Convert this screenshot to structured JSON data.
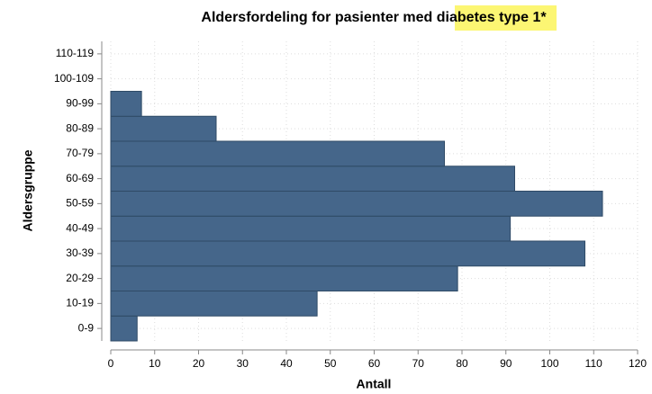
{
  "chart_data": {
    "type": "bar",
    "orientation": "horizontal",
    "title": "Aldersfordeling for pasienter med diabetes type 1*",
    "xlabel": "Antall",
    "ylabel": "Aldersgruppe",
    "categories": [
      "0-9",
      "10-19",
      "20-29",
      "30-39",
      "40-49",
      "50-59",
      "60-69",
      "70-79",
      "80-89",
      "90-99",
      "100-109",
      "110-119"
    ],
    "values": [
      6,
      47,
      79,
      108,
      91,
      112,
      92,
      76,
      24,
      7,
      0,
      0
    ],
    "color": "#45668a",
    "xlim": [
      0,
      120
    ],
    "xticks": [
      0,
      10,
      20,
      30,
      40,
      50,
      60,
      70,
      80,
      90,
      100,
      110,
      120
    ],
    "grid": true
  }
}
